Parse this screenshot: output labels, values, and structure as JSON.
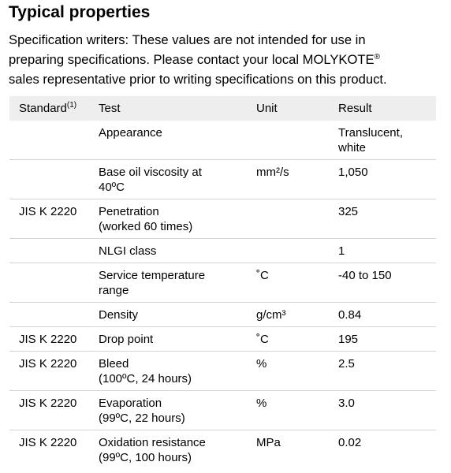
{
  "title": "Typical properties",
  "intro": {
    "line1": "Specification writers: These values are not intended for use in",
    "line2_text": "preparing specifications. Please contact your local MOLYKOTE",
    "line2_mark": "®",
    "line3": "sales representative prior to writing specifications on this product."
  },
  "table": {
    "headers": {
      "standard": "Standard",
      "standard_note": "(1)",
      "test": "Test",
      "unit": "Unit",
      "result": "Result"
    },
    "rows": [
      {
        "standard": "",
        "test_line1": "Appearance",
        "test_line2": "",
        "unit": "",
        "result_line1": "Translucent,",
        "result_line2": "white"
      },
      {
        "standard": "",
        "test_line1": "Base oil viscosity at",
        "test_line2": "40ºC",
        "unit": "mm²/s",
        "result_line1": "1,050",
        "result_line2": ""
      },
      {
        "standard": "JIS K 2220",
        "test_line1": "Penetration",
        "test_line2": "(worked 60 times)",
        "unit": "",
        "result_line1": "325",
        "result_line2": ""
      },
      {
        "standard": "",
        "test_line1": "NLGI class",
        "test_line2": "",
        "unit": "",
        "result_line1": "1",
        "result_line2": ""
      },
      {
        "standard": "",
        "test_line1": "Service temperature",
        "test_line2": "range",
        "unit": "˚C",
        "result_line1": "-40 to 150",
        "result_line2": ""
      },
      {
        "standard": "",
        "test_line1": "Density",
        "test_line2": "",
        "unit": "g/cm³",
        "result_line1": "0.84",
        "result_line2": ""
      },
      {
        "standard": "JIS K 2220",
        "test_line1": "Drop point",
        "test_line2": "",
        "unit": "˚C",
        "result_line1": "195",
        "result_line2": ""
      },
      {
        "standard": "JIS K 2220",
        "test_line1": "Bleed",
        "test_line2": "(100ºC, 24 hours)",
        "unit": "%",
        "result_line1": "2.5",
        "result_line2": ""
      },
      {
        "standard": "JIS K 2220",
        "test_line1": "Evaporation",
        "test_line2": "(99ºC, 22 hours)",
        "unit": "%",
        "result_line1": "3.0",
        "result_line2": ""
      },
      {
        "standard": "JIS K 2220",
        "test_line1": "Oxidation resistance",
        "test_line2": "(99ºC, 100 hours)",
        "unit": "MPa",
        "result_line1": "0.02",
        "result_line2": ""
      }
    ]
  },
  "colors": {
    "header_background": "#eeeeee",
    "row_divider": "#d3d3d3",
    "text": "#000000"
  }
}
